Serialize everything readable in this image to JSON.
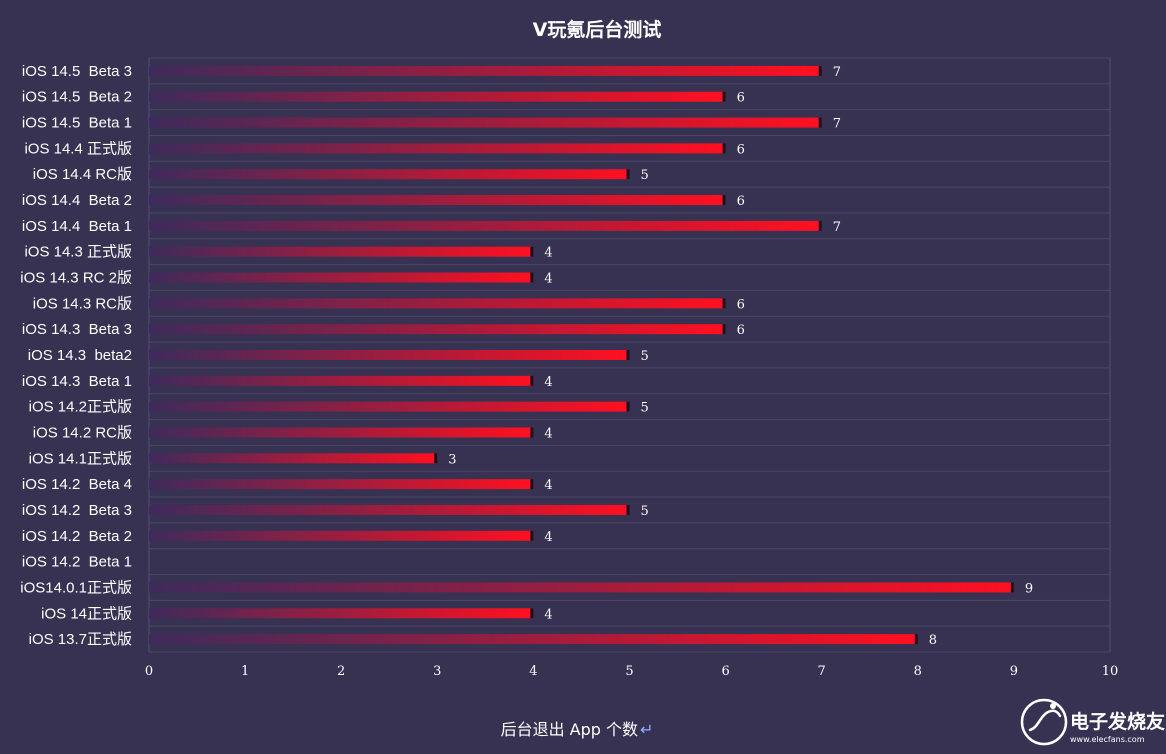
{
  "chart_data": {
    "type": "bar",
    "orientation": "horizontal",
    "title": "V玩氪后台测试",
    "xlabel": "后台退出 App 个数",
    "xlabel_suffix": "↵",
    "ylabel": "",
    "xlim": [
      0,
      10
    ],
    "xticks": [
      0,
      1,
      2,
      3,
      4,
      5,
      6,
      7,
      8,
      9,
      10
    ],
    "grid": true,
    "legend": "none",
    "bar_colors": {
      "start": "#3e2a5c",
      "end": "#ff1020"
    },
    "categories": [
      "iOS 14.5  Beta 3",
      "iOS 14.5  Beta 2",
      "iOS 14.5  Beta 1",
      "iOS 14.4 正式版",
      "iOS 14.4 RC版",
      "iOS 14.4  Beta 2",
      "iOS 14.4  Beta 1",
      "iOS 14.3 正式版",
      "iOS 14.3 RC 2版",
      "iOS 14.3 RC版",
      "iOS 14.3  Beta 3",
      "iOS 14.3  beta2",
      "iOS 14.3  Beta 1",
      "iOS 14.2正式版",
      "iOS 14.2 RC版",
      "iOS 14.1正式版",
      "iOS 14.2  Beta 4",
      "iOS 14.2  Beta 3",
      "iOS 14.2  Beta 2",
      "iOS 14.2  Beta 1",
      "iOS14.0.1正式版",
      "iOS 14正式版",
      "iOS 13.7正式版"
    ],
    "values": [
      7,
      6,
      7,
      6,
      5,
      6,
      7,
      4,
      4,
      6,
      6,
      5,
      4,
      5,
      4,
      3,
      4,
      5,
      4,
      null,
      9,
      4,
      8
    ]
  },
  "watermark": {
    "logo_text": "电子发烧友",
    "url": "www.elecfans.com",
    "icon": "elecfans-logo-icon"
  }
}
